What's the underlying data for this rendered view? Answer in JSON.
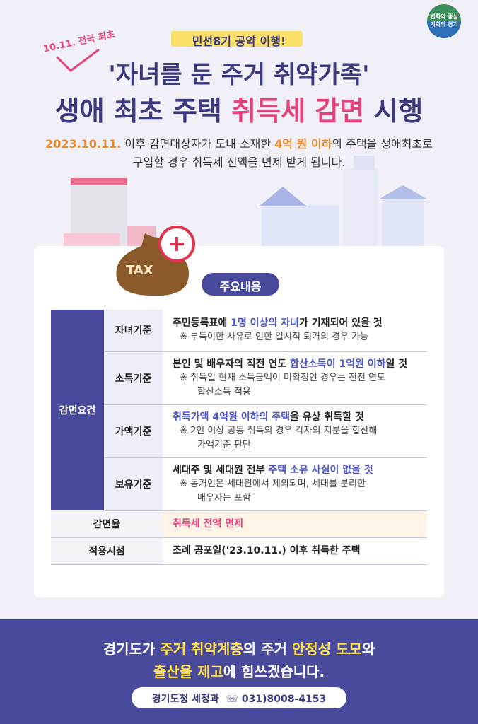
{
  "header": {
    "logo": [
      "변화의 중심",
      "기회의 경기"
    ],
    "stamp": "10.11. 전국 최초",
    "tagline": "민선8기 공약 이행!",
    "title_line1": "'자녀를 둔 주거 취약가족'",
    "title_line2": [
      "생애 최초 주택 ",
      "취득세 감면",
      " 시행"
    ],
    "subtitle_line1": [
      "2023.10.11.",
      " 이후 감면대상자가 도내 소재한 ",
      "4억 원 이하",
      "의 주택을 생애최초로"
    ],
    "subtitle_line2": "구입할 경우 취득세 전액을 면제 받게 됩니다."
  },
  "badge": "TAX",
  "section_title": "주요내용",
  "table": {
    "group_label": "감면요건",
    "rows": [
      {
        "label": "자녀기준",
        "main": [
          "주민등록표에 ",
          "1명 이상의 자녀",
          "가 기재되어 있을 것"
        ],
        "note": [
          "※ 부득이한 사유로 인한 일시적 퇴거의 경우 가능"
        ]
      },
      {
        "label": "소득기준",
        "main": [
          "본인 및 배우자의 직전 연도 ",
          "합산소득이 1억원 이하",
          "일 것"
        ],
        "note": [
          "※ 취득일 현재 소득금액이 미확정인 경우는 전전 연도",
          "합산소득 적용"
        ]
      },
      {
        "label": "가액기준",
        "main": [
          "",
          "취득가액 4억원 이하의 주택",
          "을 유상 취득할 것"
        ],
        "note": [
          "※ 2인 이상 공동 취득의 경우 각자의 지분을 합산해",
          "가액기준 판단"
        ]
      },
      {
        "label": "보유기준",
        "main": [
          "세대주 및 세대원 전부 ",
          "주택 소유 사실이 없을 것",
          ""
        ],
        "note": [
          "※ 동거인은 세대원에서 제외되며, 세대를 분리한",
          "배우자는 포함"
        ]
      }
    ],
    "rate_label": "감면율",
    "rate_value": "취득세 전액 면제",
    "date_label": "적용시점",
    "date_value": "조례 공포일('23.10.11.) 이후 취득한 주택"
  },
  "footer": {
    "line1": [
      "경기도가 ",
      "주거 취약계층",
      "의 주거 ",
      "안정성 도모",
      "와"
    ],
    "line2": [
      "출산율 제고",
      "에 힘쓰겠습니다."
    ],
    "department": "경기도청 세정과",
    "phone": "031)8008-4153"
  }
}
